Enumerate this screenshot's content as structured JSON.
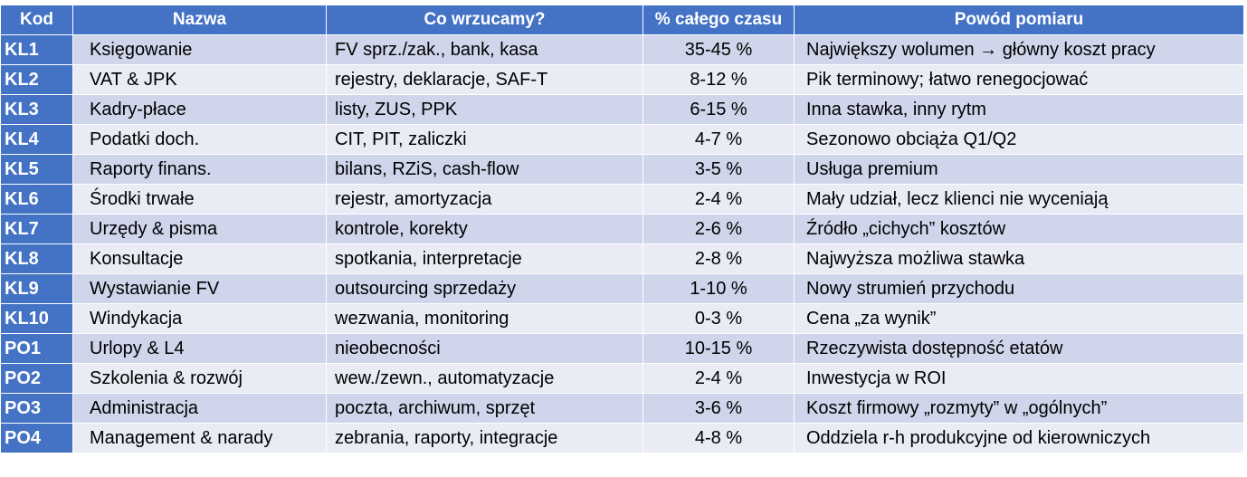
{
  "table": {
    "headers": [
      "Kod",
      "Nazwa",
      "Co wrzucamy?",
      "% całego czasu",
      "Powód pomiaru"
    ],
    "rows": [
      [
        "KL1",
        "Księgowanie",
        "FV sprz./zak., bank, kasa",
        "35-45 %",
        "Największy wolumen → główny koszt pracy"
      ],
      [
        "KL2",
        "VAT & JPK",
        "rejestry, deklaracje, SAF-T",
        "8-12 %",
        "Pik terminowy; łatwo renegocjować"
      ],
      [
        "KL3",
        "Kadry-płace",
        "listy, ZUS, PPK",
        "6-15 %",
        "Inna stawka, inny rytm"
      ],
      [
        "KL4",
        "Podatki doch.",
        "CIT, PIT, zaliczki",
        "4-7 %",
        "Sezonowo obciąża Q1/Q2"
      ],
      [
        "KL5",
        "Raporty finans.",
        "bilans, RZiS, cash-flow",
        "3-5 %",
        "Usługa premium"
      ],
      [
        "KL6",
        "Środki trwałe",
        "rejestr, amortyzacja",
        "2-4 %",
        "Mały udział, lecz klienci nie wyceniają"
      ],
      [
        "KL7",
        "Urzędy & pisma",
        "kontrole, korekty",
        "2-6 %",
        "Źródło „cichych” kosztów"
      ],
      [
        "KL8",
        "Konsultacje",
        "spotkania, interpretacje",
        "2-8 %",
        "Najwyższa możliwa stawka"
      ],
      [
        "KL9",
        "Wystawianie FV",
        "outsourcing sprzedaży",
        "1-10 %",
        "Nowy strumień przychodu"
      ],
      [
        "KL10",
        "Windykacja",
        "wezwania, monitoring",
        "0-3 %",
        "Cena „za wynik”"
      ],
      [
        "PO1",
        "Urlopy & L4",
        "nieobecności",
        "10-15 %",
        "Rzeczywista dostępność etatów"
      ],
      [
        "PO2",
        "Szkolenia & rozwój",
        "wew./zewn., automatyzacje",
        "2-4 %",
        "Inwestycja w ROI"
      ],
      [
        "PO3",
        "Administracja",
        "poczta, archiwum, sprzęt",
        "3-6 %",
        "Koszt firmowy „rozmyty” w „ogólnych”"
      ],
      [
        "PO4",
        "Management & narady",
        "zebrania, raporty, integracje",
        "4-8 %",
        "Oddziela r-h produkcyjne od kierowniczych"
      ]
    ]
  },
  "colors": {
    "header_bg": "#4472c4",
    "row_band_dark": "#cfd5ea",
    "row_band_light": "#e9ebf5"
  }
}
